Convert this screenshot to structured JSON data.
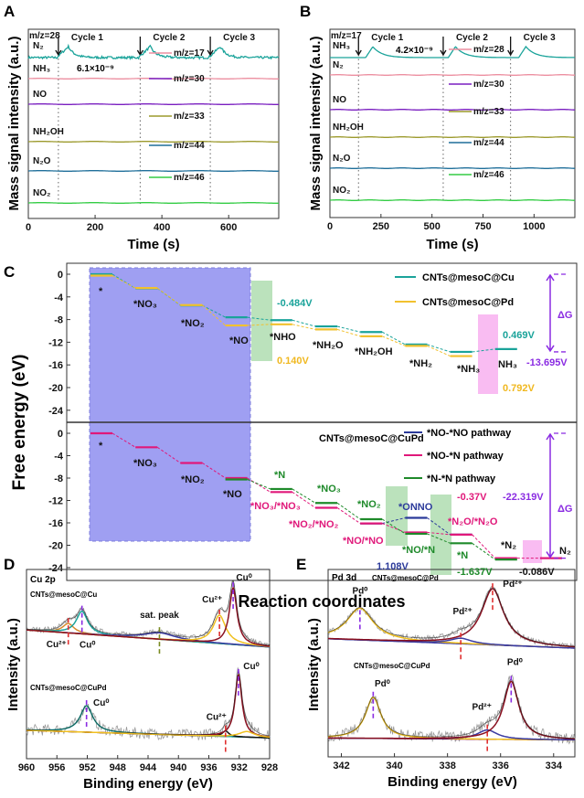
{
  "panels": {
    "A": "A",
    "B": "B",
    "C": "C",
    "D": "D",
    "E": "E"
  },
  "chart_data": [
    {
      "id": "A",
      "type": "line",
      "xlabel": "Time (s)",
      "ylabel": "Mass signal intensity (a.u.)",
      "xlim": [
        0,
        750
      ],
      "xticks": [
        0,
        200,
        400,
        600
      ],
      "cycles": [
        {
          "label": "Cycle 1",
          "t": 90
        },
        {
          "label": "Cycle 2",
          "t": 335
        },
        {
          "label": "Cycle 3",
          "t": 545
        }
      ],
      "annotation": "6.1×10⁻⁹",
      "series": [
        {
          "name": "N₂",
          "mz": "m/z=28",
          "color": "#1aa39a",
          "peaks": [
            120,
            365,
            575
          ],
          "noisy": true
        },
        {
          "name": "NH₃",
          "mz": "m/z=17",
          "color": "#ec8fa0",
          "peaks": []
        },
        {
          "name": "NO",
          "mz": "m/z=30",
          "color": "#7a1fc0",
          "peaks": []
        },
        {
          "name": "NH₂OH",
          "mz": "m/z=33",
          "color": "#9c9a2c",
          "peaks": []
        },
        {
          "name": "N₂O",
          "mz": "m/z=44",
          "color": "#1f6f9a",
          "peaks": []
        },
        {
          "name": "NO₂",
          "mz": "m/z=46",
          "color": "#33cc44",
          "peaks": []
        }
      ]
    },
    {
      "id": "B",
      "type": "line",
      "xlabel": "Time (s)",
      "ylabel": "Mass signal intensity (a.u.)",
      "xlim": [
        0,
        1200
      ],
      "xticks": [
        0,
        250,
        500,
        750,
        1000
      ],
      "cycles": [
        {
          "label": "Cycle 1",
          "t": 140
        },
        {
          "label": "Cycle 2",
          "t": 555
        },
        {
          "label": "Cycle 3",
          "t": 885
        }
      ],
      "annotation": "4.2×10⁻⁹",
      "series": [
        {
          "name": "NH₃",
          "mz": "m/z=17",
          "color": "#1aa39a",
          "peaks": [
            210,
            615,
            960
          ],
          "noisy": false
        },
        {
          "name": "N₂",
          "mz": "m/z=28",
          "color": "#ec8fa0",
          "peaks": []
        },
        {
          "name": "NO",
          "mz": "m/z=30",
          "color": "#7a1fc0",
          "peaks": []
        },
        {
          "name": "NH₂OH",
          "mz": "m/z=33",
          "color": "#9c9a2c",
          "peaks": []
        },
        {
          "name": "N₂O",
          "mz": "m/z=44",
          "color": "#1f6f9a",
          "peaks": []
        },
        {
          "name": "NO₂",
          "mz": "m/z=46",
          "color": "#33cc44",
          "peaks": []
        }
      ]
    },
    {
      "id": "C",
      "type": "line",
      "xlabel": "Reaction coordinates",
      "ylabel": "Free energy (eV)",
      "ylim": [
        -26,
        2
      ],
      "yticks": [
        0,
        -4,
        -8,
        -12,
        -16,
        -20,
        -24
      ],
      "top": {
        "series": [
          {
            "name": "CNTs@mesoC@Cu",
            "color": "#1aa39a",
            "levels": [
              0,
              -2.5,
              -5.5,
              -7.6,
              -8.1,
              -9.2,
              -10.2,
              -12.4,
              -13.7,
              -13.2
            ]
          },
          {
            "name": "CNTs@mesoC@Pd",
            "color": "#f2c12e",
            "levels": [
              0,
              -2.2,
              -5.2,
              -8.8,
              -8.6,
              -9.5,
              -10.7,
              -12.4,
              -14.2,
              null
            ]
          }
        ],
        "step_labels": [
          "*",
          "*NO₃",
          "*NO₂",
          "*NO",
          "*NHO",
          "*NH₂O",
          "*NH₂OH",
          "*NH₂",
          "*NH₃",
          "NH₃"
        ],
        "annotations": {
          "cu_limit": "-0.484V",
          "pd_limit": "0.140V",
          "cu_des": "0.469V",
          "pd_des": "0.792V",
          "dg": "-13.695V",
          "dg_symbol": "ΔG"
        }
      },
      "bottom": {
        "title": "CNTs@mesoC@CuPd",
        "series": [
          {
            "name": "*NO-*NO pathway",
            "color": "#2b3a9a",
            "levels": [
              null,
              null,
              null,
              null,
              null,
              null,
              -16.1,
              -15.1,
              -18.1,
              null,
              null
            ]
          },
          {
            "name": "*NO-*N pathway",
            "color": "#e0187a",
            "levels": [
              0,
              -2.5,
              -5.3,
              -8.0,
              -10.5,
              -13.3,
              -16.1,
              -17.7,
              -18.1,
              -22.3,
              -22.3
            ]
          },
          {
            "name": "*N-*N pathway",
            "color": "#1e8a2a",
            "levels": [
              null,
              null,
              null,
              -8.0,
              -9.7,
              -12.2,
              -15.1,
              -17.7,
              -19.4,
              -22.3,
              null
            ]
          }
        ],
        "step_labels": {
          "s0": "*",
          "s1": "*NO₃",
          "s2": "*NO₂",
          "s3": "*NO",
          "n": "*N",
          "no3g": "*NO₃",
          "no3p": "*NO₃/*NO₃",
          "no2g": "*NO₂",
          "no2p": "*NO₂/*NO₂",
          "onno": "*ONNO",
          "n2op": "*N₂O/*N₂O",
          "nonop": "*NO/*NO",
          "nong": "*NO/*N",
          "n2g": "*N",
          "n2ads": "*N₂",
          "n2": "N₂"
        },
        "annotations": {
          "v1": "-0.37V",
          "dg": "-22.319V",
          "dg_symbol": "ΔG",
          "v_blue": "1.108V",
          "v_green": "-1.637V",
          "v_last": "-0.086V"
        }
      }
    },
    {
      "id": "D",
      "type": "line",
      "title": "Cu 2p",
      "xlabel": "Binding energy (eV)",
      "ylabel": "Intensity (a.u.)",
      "xlim": [
        960,
        928
      ],
      "xticks": [
        960,
        956,
        952,
        948,
        944,
        940,
        936,
        932,
        928
      ],
      "spectra": [
        {
          "name": "CNTs@mesoC@Cu",
          "baseline": [
            0.68,
            0.59
          ],
          "peaks": [
            {
              "label": "Cu²⁺",
              "center": 954.5,
              "height": 0.05,
              "width": 0.9,
              "color": "#d88a2a"
            },
            {
              "label": "Cu⁰",
              "center": 952.7,
              "height": 0.12,
              "width": 0.9,
              "color": "#1aa39a"
            },
            {
              "label": "sat. peak",
              "center": 942.5,
              "height": 0.035,
              "width": 2.5,
              "color": "#3a3aa0"
            },
            {
              "label": "Cu²⁺",
              "center": 934.6,
              "height": 0.15,
              "width": 1.0,
              "color": "#f0c020"
            },
            {
              "label": "Cu⁰",
              "center": 932.8,
              "height": 0.3,
              "width": 0.6,
              "color": "#8a1020"
            }
          ]
        },
        {
          "name": "CNTs@mesoC@CuPd",
          "baseline": [
            0.15,
            0.11
          ],
          "peaks": [
            {
              "label": "Cu⁰",
              "center": 952.1,
              "height": 0.14,
              "width": 1.0,
              "color": "#1aa39a"
            },
            {
              "label": "Cu²⁺",
              "center": 933.8,
              "height": 0.03,
              "width": 0.5,
              "color": "#111111"
            },
            {
              "label": "Cu⁰",
              "center": 932.1,
              "height": 0.33,
              "width": 0.55,
              "color": "#8a1020"
            },
            {
              "label": "",
              "center": 931.0,
              "height": 0.03,
              "width": 1.2,
              "color": "#f0c020"
            }
          ]
        }
      ]
    },
    {
      "id": "E",
      "type": "line",
      "title": "Pd 3d",
      "xlabel": "Binding energy (eV)",
      "ylabel": "Intensity (a.u.)",
      "xlim": [
        342.5,
        333.2
      ],
      "xticks": [
        342,
        340,
        338,
        336,
        334
      ],
      "spectra": [
        {
          "name": "CNTs@mesoC@Pd",
          "baseline": [
            0.63,
            0.58
          ],
          "peaks": [
            {
              "label": "Pd⁰",
              "center": 341.3,
              "height": 0.17,
              "width": 0.6,
              "color": "#f0c020"
            },
            {
              "label": "Pd²⁺",
              "center": 337.5,
              "height": 0.03,
              "width": 0.5,
              "color": "#3a3aa0"
            },
            {
              "label": "Pd²⁺",
              "center": 336.3,
              "height": 0.3,
              "width": 0.5,
              "color": "#8a1020"
            }
          ]
        },
        {
          "name": "CNTs@mesoC@CuPd",
          "baseline": [
            0.1,
            0.09
          ],
          "peaks": [
            {
              "label": "Pd⁰",
              "center": 340.8,
              "height": 0.22,
              "width": 0.35,
              "color": "#f0c020"
            },
            {
              "label": "Pd²⁺",
              "center": 336.5,
              "height": 0.05,
              "width": 0.45,
              "color": "#3a3aa0"
            },
            {
              "label": "Pd⁰",
              "center": 335.6,
              "height": 0.31,
              "width": 0.35,
              "color": "#8a1020"
            }
          ]
        }
      ]
    }
  ]
}
